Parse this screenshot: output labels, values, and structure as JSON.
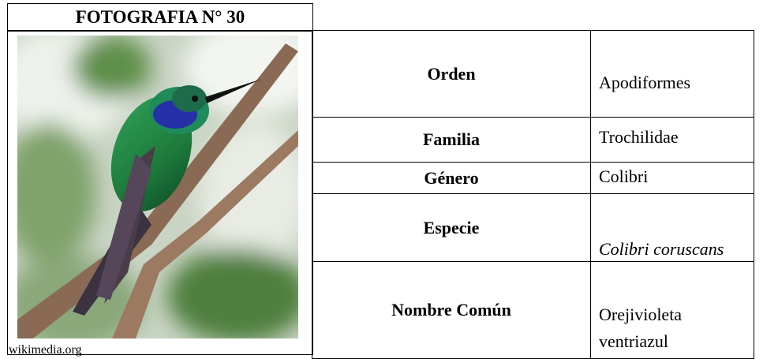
{
  "header": {
    "title": "FOTOGRAFIA N° 30"
  },
  "photo": {
    "source": "wikimedia.org"
  },
  "table": {
    "rows": [
      [
        "Orden",
        "Apodiformes"
      ],
      [
        "Familia",
        "Trochilidae"
      ],
      [
        "Género",
        "Colibri"
      ],
      [
        "Especie",
        "Colibri coruscans"
      ],
      [
        "Nombre Común",
        "Orejivioleta ventriazul"
      ]
    ]
  }
}
